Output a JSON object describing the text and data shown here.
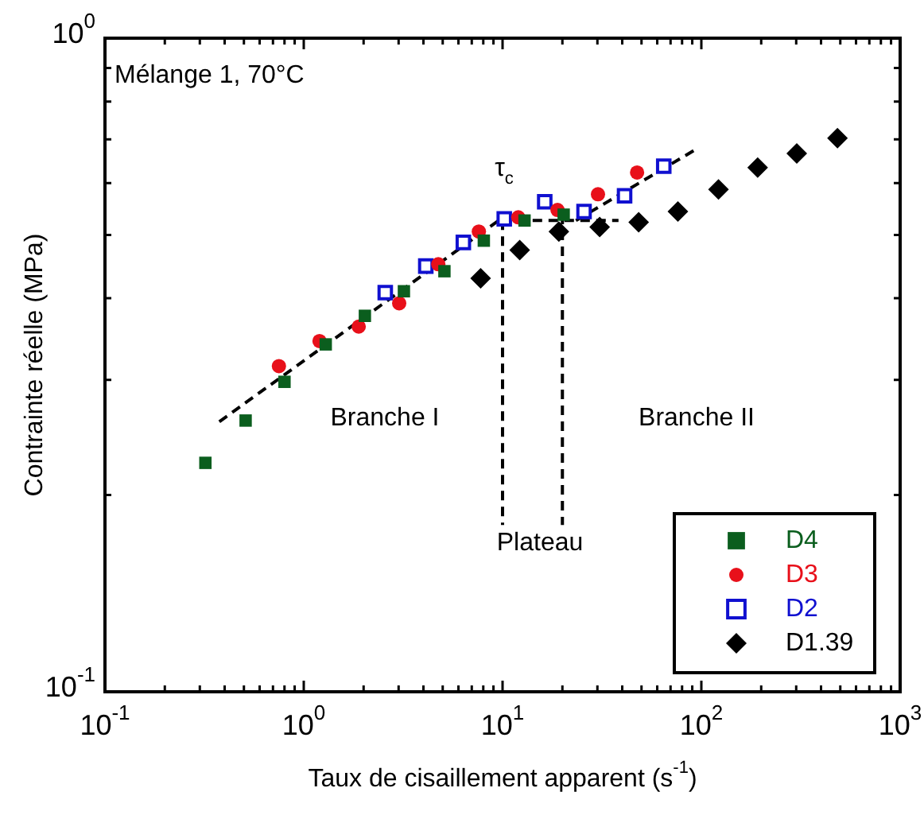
{
  "chart_data": {
    "type": "scatter",
    "log": "xy",
    "xlabel": "Taux de cisaillement apparent (s$^{-1}$)",
    "ylabel": "Contrainte réelle (MPa)",
    "xlim": [
      0.1,
      1000
    ],
    "ylim": [
      0.1,
      1
    ],
    "xticks": [
      {
        "value": 0.1,
        "label": "10$^{-1}$"
      },
      {
        "value": 0.2,
        "label": null
      },
      {
        "value": 0.3,
        "label": null
      },
      {
        "value": 0.4,
        "label": null
      },
      {
        "value": 0.5,
        "label": null
      },
      {
        "value": 0.6,
        "label": null
      },
      {
        "value": 0.7,
        "label": null
      },
      {
        "value": 0.8,
        "label": null
      },
      {
        "value": 0.9,
        "label": null
      },
      {
        "value": 1,
        "label": "10$^{0}$"
      },
      {
        "value": 2,
        "label": null
      },
      {
        "value": 3,
        "label": null
      },
      {
        "value": 4,
        "label": null
      },
      {
        "value": 5,
        "label": null
      },
      {
        "value": 6,
        "label": null
      },
      {
        "value": 7,
        "label": null
      },
      {
        "value": 8,
        "label": null
      },
      {
        "value": 9,
        "label": null
      },
      {
        "value": 10,
        "label": "10$^{1}$"
      },
      {
        "value": 20,
        "label": null
      },
      {
        "value": 30,
        "label": null
      },
      {
        "value": 40,
        "label": null
      },
      {
        "value": 50,
        "label": null
      },
      {
        "value": 60,
        "label": null
      },
      {
        "value": 70,
        "label": null
      },
      {
        "value": 80,
        "label": null
      },
      {
        "value": 90,
        "label": null
      },
      {
        "value": 100,
        "label": "10$^{2}$"
      },
      {
        "value": 200,
        "label": null
      },
      {
        "value": 300,
        "label": null
      },
      {
        "value": 400,
        "label": null
      },
      {
        "value": 500,
        "label": null
      },
      {
        "value": 600,
        "label": null
      },
      {
        "value": 700,
        "label": null
      },
      {
        "value": 800,
        "label": null
      },
      {
        "value": 900,
        "label": null
      },
      {
        "value": 1000,
        "label": "10$^{3}$"
      }
    ],
    "yticks": [
      {
        "value": 0.1,
        "label": "10$^{-1}$"
      },
      {
        "value": 0.2,
        "label": null
      },
      {
        "value": 0.3,
        "label": null
      },
      {
        "value": 0.4,
        "label": null
      },
      {
        "value": 0.5,
        "label": null
      },
      {
        "value": 0.6,
        "label": null
      },
      {
        "value": 0.7,
        "label": null
      },
      {
        "value": 0.8,
        "label": null
      },
      {
        "value": 0.9,
        "label": null
      },
      {
        "value": 1,
        "label": "10$^{0}$"
      }
    ],
    "grid": false,
    "legend": "bottom right",
    "series": [
      {
        "name": "D4",
        "color": "#0b5e1e",
        "marker": "square",
        "x": [
          0.32,
          0.51,
          0.8,
          1.29,
          2.03,
          3.19,
          5.1,
          8.05,
          12.9,
          20.3
        ],
        "values": [
          0.224,
          0.26,
          0.298,
          0.34,
          0.376,
          0.41,
          0.44,
          0.49,
          0.526,
          0.537
        ]
      },
      {
        "name": "D3",
        "color": "#e8101a",
        "marker": "circle",
        "x": [
          0.75,
          1.2,
          1.89,
          3.02,
          4.75,
          7.6,
          12,
          18.9,
          30.2,
          47.5
        ],
        "values": [
          0.315,
          0.344,
          0.362,
          0.393,
          0.451,
          0.506,
          0.532,
          0.546,
          0.577,
          0.623
        ]
      },
      {
        "name": "D2",
        "color": "#1010d0",
        "marker": "square",
        "x": [
          2.57,
          4.11,
          6.35,
          10.2,
          16.3,
          25.7,
          41.1,
          64.7
        ],
        "values": [
          0.408,
          0.448,
          0.487,
          0.529,
          0.562,
          0.543,
          0.574,
          0.637
        ]
      },
      {
        "name": "D1.39",
        "color": "#000000",
        "marker": "diamond",
        "x": [
          7.76,
          12.2,
          19.2,
          30.8,
          48.4,
          76.2,
          122,
          192,
          302,
          484
        ],
        "values": [
          0.429,
          0.474,
          0.506,
          0.514,
          0.523,
          0.543,
          0.587,
          0.634,
          0.666,
          0.703
        ]
      },
      {
        "type": "line",
        "color": "#000000",
        "line_style": "dashed",
        "x": [
          0.376,
          9.8
        ],
        "values": [
          0.259,
          0.529
        ]
      },
      {
        "type": "line",
        "color": "#000000",
        "line_style": "dashed",
        "x": [
          9.8,
          38.3
        ],
        "values": [
          0.526,
          0.526
        ]
      },
      {
        "type": "line",
        "color": "#000000",
        "line_style": "dashed",
        "x": [
          23.4,
          94.7
        ],
        "values": [
          0.526,
          0.677
        ]
      },
      {
        "type": "line",
        "color": "#000000",
        "line_style": "dashed",
        "x": [
          10,
          10
        ],
        "values": [
          0.526,
          0.18
        ]
      },
      {
        "type": "line",
        "color": "#000000",
        "line_style": "dashed",
        "x": [
          20,
          20
        ],
        "values": [
          0.537,
          0.18
        ]
      }
    ],
    "annotations": [
      "Mélange 1, 70°C",
      "τ$_{c}$",
      "Branche I",
      "Branche II",
      "Plateau"
    ]
  }
}
